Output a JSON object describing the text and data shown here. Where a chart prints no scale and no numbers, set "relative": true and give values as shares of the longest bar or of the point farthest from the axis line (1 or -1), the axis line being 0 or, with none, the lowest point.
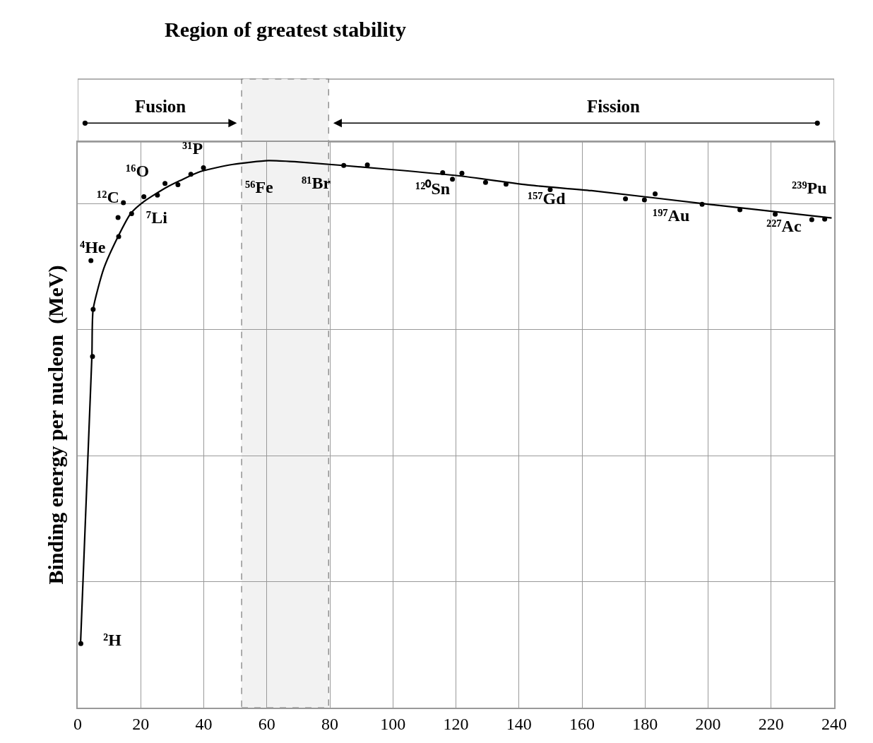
{
  "chart_data": {
    "type": "scatter",
    "relative": true,
    "ylabel": "Binding energy per nucleon  (MeV)",
    "xlim": [
      0,
      240
    ],
    "xticks": [
      0,
      20,
      40,
      60,
      80,
      100,
      120,
      140,
      160,
      180,
      200,
      220,
      240
    ],
    "grid": true,
    "series": [
      {
        "marker": "circle",
        "color": "#000000",
        "x": [
          1.0,
          4.2,
          4.7,
          4.9,
          12.8,
          13.0,
          14.5,
          17.1,
          21.0,
          25.3,
          27.7,
          31.8,
          35.9,
          39.9,
          84.4,
          91.9,
          115.8,
          118.9,
          121.9,
          129.4,
          135.9,
          149.9,
          173.8,
          179.8,
          183.2,
          198.1,
          210.1,
          221.3,
          232.9,
          237.0
        ],
        "values": [
          0.117,
          0.817,
          0.642,
          0.728,
          0.896,
          0.861,
          0.923,
          0.903,
          0.934,
          0.937,
          0.958,
          0.956,
          0.975,
          0.987,
          0.991,
          0.992,
          0.978,
          0.966,
          0.977,
          0.96,
          0.957,
          0.947,
          0.93,
          0.928,
          0.939,
          0.92,
          0.91,
          0.902,
          0.892,
          0.893
        ]
      },
      {
        "type": "line",
        "marker": "none",
        "color": "#000000",
        "x": [
          0.9,
          4.5,
          4.9,
          8.3,
          12.8,
          16.8,
          21.0,
          28.5,
          39.0,
          49.3,
          60.5,
          68.8,
          98.7,
          121.1,
          143.5,
          163.0,
          200.4,
          239.2
        ],
        "values": [
          0.117,
          0.642,
          0.728,
          0.803,
          0.861,
          0.903,
          0.925,
          0.952,
          0.98,
          0.993,
          1.0,
          0.998,
          0.984,
          0.972,
          0.955,
          0.945,
          0.92,
          0.895
        ]
      }
    ],
    "bands": [
      {
        "axis": "x",
        "from": 52,
        "to": 79.6,
        "label": "Region of greatest stability",
        "color": "#f2f2f2"
      }
    ],
    "annotations": [
      "Fusion",
      "Fission",
      {
        "text": "²H",
        "x": 1.0,
        "y": 0.117
      },
      {
        "text": "⁴He",
        "x": 4.2,
        "y": 0.817
      },
      {
        "text": "⁷Li",
        "x": 21.0,
        "y": 0.934
      },
      {
        "text": "¹²C",
        "x": 14.5,
        "y": 0.923
      },
      {
        "text": "¹⁶O",
        "x": 25.3,
        "y": 0.937
      },
      {
        "text": "³¹P",
        "x": 39.9,
        "y": 0.987
      },
      {
        "text": "⁵⁶Fe",
        "x": 60.5,
        "y": 1.0
      },
      {
        "text": "⁸¹Br",
        "x": 84.4,
        "y": 0.991
      },
      {
        "text": "¹²⁰Sn",
        "x": 118.9,
        "y": 0.966
      },
      {
        "text": "¹⁵⁷Gd",
        "x": 149.9,
        "y": 0.947
      },
      {
        "text": "¹⁹⁷Au",
        "x": 183.2,
        "y": 0.939
      },
      {
        "text": "²²⁷Ac",
        "x": 221.3,
        "y": 0.902
      },
      {
        "text": "²³⁹Pu",
        "x": 237.0,
        "y": 0.893
      }
    ]
  }
}
